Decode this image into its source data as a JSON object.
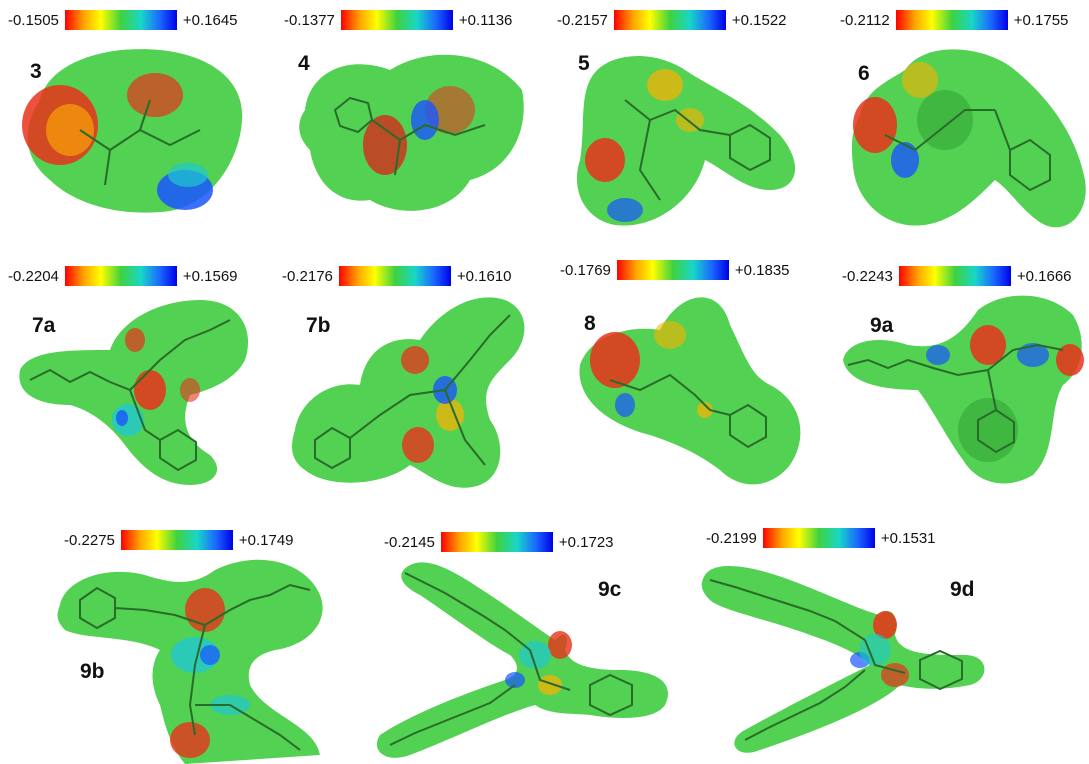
{
  "panels": [
    {
      "id": "3",
      "min": "-0.1505",
      "max": "+0.1645",
      "accent": "#e8321a"
    },
    {
      "id": "4",
      "min": "-0.1377",
      "max": "+0.1136",
      "accent": "#d62a1e"
    },
    {
      "id": "5",
      "min": "-0.2157",
      "max": "+0.1522",
      "accent": "#e3401f"
    },
    {
      "id": "6",
      "min": "-0.2112",
      "max": "+0.1755",
      "accent": "#e3401f"
    },
    {
      "id": "7a",
      "min": "-0.2204",
      "max": "+0.1569",
      "accent": "#e3401f"
    },
    {
      "id": "7b",
      "min": "-0.2176",
      "max": "+0.1610",
      "accent": "#e3401f"
    },
    {
      "id": "8",
      "min": "-0.1769",
      "max": "+0.1835",
      "accent": "#e3401f"
    },
    {
      "id": "9a",
      "min": "-0.2243",
      "max": "+0.1666",
      "accent": "#e3401f"
    },
    {
      "id": "9b",
      "min": "-0.2275",
      "max": "+0.1749",
      "accent": "#e3401f"
    },
    {
      "id": "9c",
      "min": "-0.2145",
      "max": "+0.1723",
      "accent": "#e3401f"
    },
    {
      "id": "9d",
      "min": "-0.2199",
      "max": "+0.1531",
      "accent": "#e3401f"
    }
  ],
  "colors": {
    "surface": "#52d152",
    "surface_dark": "#3cb03c",
    "negative": "#e8321a",
    "negative_mid": "#ffb000",
    "positive": "#1a55ff",
    "positive_mid": "#20c8d0",
    "bond": "#2a6b2a"
  }
}
